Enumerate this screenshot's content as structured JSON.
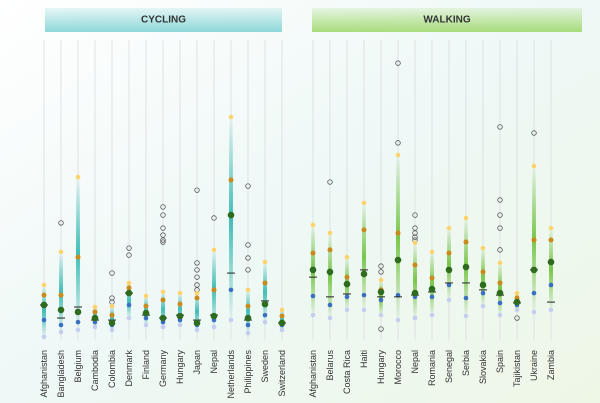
{
  "chart_data": [
    {
      "type": "distribution",
      "title": "CYCLING",
      "categories": [
        "Afghanistan",
        "Bangladesh",
        "Belgium",
        "Cambodia",
        "Colombia",
        "Denmark",
        "Finland",
        "Germany",
        "Hungary",
        "Japan",
        "Nepal",
        "Netherlands",
        "Philippines",
        "Sweden",
        "Switzerland"
      ],
      "top": [
        20.7,
        32.1,
        57.9,
        13.1,
        13.4,
        21.4,
        16.9,
        18.3,
        17.9,
        17.9,
        32.8,
        78.6,
        19,
        28.6,
        12.1
      ],
      "upper": [
        17.2,
        17.2,
        30.3,
        11.4,
        10.3,
        19.7,
        13.4,
        15.5,
        14.1,
        16.2,
        19,
        56.9,
        13.4,
        21.4,
        10
      ],
      "mean": [
        13.8,
        12.1,
        11.4,
        9.3,
        7.6,
        17.9,
        11,
        9.3,
        10,
        7.6,
        10,
        44.8,
        9.3,
        14.1,
        7.6
      ],
      "median": [
        13.8,
        9.3,
        13.1,
        8.6,
        8.6,
        17.9,
        10.3,
        9.3,
        10.3,
        8.6,
        10.3,
        24.8,
        8.6,
        15.2,
        7.6
      ],
      "lower": [
        8.6,
        6.9,
        7.9,
        7.9,
        6.9,
        13.8,
        9.3,
        7.9,
        8.6,
        6.9,
        8.6,
        19,
        6.9,
        10.3,
        6.9
      ],
      "bottom": [
        2.8,
        4.5,
        5.2,
        6.2,
        5.2,
        9.3,
        6.9,
        6.2,
        6.9,
        5.2,
        6.2,
        8.6,
        4.1,
        7.9,
        5.2
      ],
      "outliers": [
        [],
        [
          42.1
        ],
        [],
        [],
        [
          24.8,
          16.2,
          14.8
        ],
        [
          33.4,
          31
        ],
        [],
        [
          47.6,
          44.8,
          40.3,
          37.9,
          36.2,
          35.5
        ],
        [],
        [
          53.4,
          28.3,
          25.9,
          23.4,
          20.7,
          19
        ],
        [
          43.8
        ],
        [],
        [
          54.8,
          34.5,
          30,
          25.9
        ],
        [],
        []
      ],
      "colors": {
        "band": "#2fb8b0",
        "top": "#ffd36b",
        "upper": "#c98a1e",
        "mean": "#2e6b1f",
        "median": "#222222",
        "lower": "#3b6fc4",
        "bottom": "#c5cdf0",
        "outlier": "#555555",
        "header": "#8ed8d8"
      },
      "ylim": [
        0,
        100
      ]
    },
    {
      "type": "distribution",
      "title": "WALKING",
      "categories": [
        "Afghanistan",
        "Belarus",
        "Costa Rica",
        "Haiti",
        "Hungary",
        "Morocco",
        "Nepal",
        "Romania",
        "Senegal",
        "Serbia",
        "Slovakia",
        "Spain",
        "Tajikistan",
        "Ukraine",
        "Zambia"
      ],
      "top": [
        41.4,
        38.6,
        30.3,
        49,
        22.4,
        65.5,
        35.2,
        32.1,
        40.3,
        43.8,
        33.4,
        28.3,
        17.9,
        61.7,
        40.3
      ],
      "upper": [
        31.7,
        32.8,
        23.4,
        39.7,
        19,
        38.6,
        27.6,
        23.1,
        31.7,
        35.5,
        25.2,
        21.4,
        16.2,
        36.2,
        36.2
      ],
      "mean": [
        25.9,
        25.2,
        21,
        24.5,
        18.3,
        29.3,
        17.9,
        19.3,
        25.9,
        26.9,
        20.7,
        17.9,
        14.8,
        25.9,
        28.6
      ],
      "median": [
        23.4,
        16.6,
        17.6,
        25.9,
        16.6,
        16.6,
        17.2,
        18.3,
        21.4,
        21.4,
        19,
        17.2,
        14.5,
        25.9,
        14.8
      ],
      "lower": [
        16.9,
        13.8,
        16.6,
        17.2,
        15.5,
        17.2,
        16.6,
        16.6,
        20.7,
        16.2,
        17.9,
        14.5,
        13.8,
        17.9,
        20.7
      ],
      "bottom": [
        10.3,
        9.3,
        12.1,
        12.1,
        10.3,
        8.6,
        9.3,
        10.3,
        15.5,
        10,
        13.4,
        10.3,
        12.1,
        11.4,
        12.1
      ],
      "outliers": [
        [],
        [
          56.2
        ],
        [],
        [],
        [
          27.2,
          25.2,
          5.5
        ],
        [
          97.2,
          69.7
        ],
        [
          44.8,
          40.3,
          38.6,
          37.2,
          36.2
        ],
        [],
        [],
        [],
        [],
        [
          75.2,
          50,
          44.8,
          40.3,
          32.8
        ],
        [
          9.3
        ],
        [
          73.1
        ],
        []
      ],
      "colors": {
        "band": "#6cc23a",
        "top": "#ffd36b",
        "upper": "#c98a1e",
        "mean": "#2e6b1f",
        "median": "#222222",
        "lower": "#3b6fc4",
        "bottom": "#c5cdf0",
        "outlier": "#555555",
        "header": "#a8dc7c"
      },
      "ylim": [
        0,
        100
      ]
    }
  ]
}
